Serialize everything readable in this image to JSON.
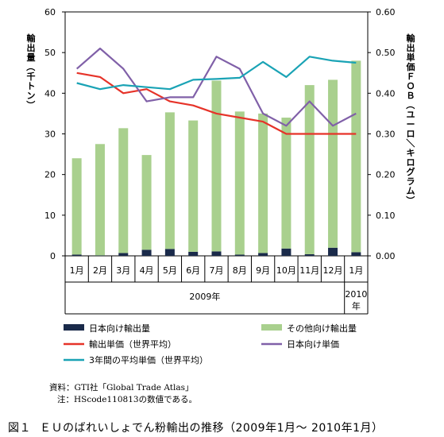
{
  "chart_data": {
    "type": "bar+line",
    "categories": [
      "1月",
      "2月",
      "3月",
      "4月",
      "5月",
      "6月",
      "7月",
      "8月",
      "9月",
      "10月",
      "11月",
      "12月",
      "1月"
    ],
    "year_labels": [
      {
        "text": "2009年",
        "span": [
          0,
          11
        ]
      },
      {
        "text": "2010年",
        "span": [
          12,
          12
        ]
      }
    ],
    "left_axis": {
      "label": "輸出量（千トン）",
      "ylim": [
        0,
        60
      ],
      "ticks": [
        "0",
        "10",
        "20",
        "30",
        "40",
        "50",
        "60"
      ]
    },
    "right_axis": {
      "label": "輸出単価ＦＯＢ（ユーロ／キログラム）",
      "ylim": [
        0,
        0.6
      ],
      "ticks": [
        "0.00",
        "0.10",
        "0.20",
        "0.30",
        "0.40",
        "0.50",
        "0.60"
      ]
    },
    "stacked_bars": [
      {
        "name": "日本向け輸出量",
        "color": "#1a2a4a",
        "axis": "left",
        "values": [
          0.3,
          0.1,
          0.7,
          1.5,
          1.7,
          1.0,
          1.1,
          0.3,
          0.7,
          1.8,
          0.4,
          2.0,
          0.9
        ]
      },
      {
        "name": "その他向け輸出量",
        "color": "#a9d08e",
        "axis": "left",
        "values": [
          23.7,
          27.4,
          30.7,
          23.3,
          33.6,
          32.3,
          42.0,
          35.2,
          34.3,
          32.2,
          41.6,
          41.3,
          47.1
        ]
      }
    ],
    "lines": [
      {
        "name": "輸出単価（世界平均）",
        "color": "#e63329",
        "axis": "right",
        "values": [
          0.45,
          0.44,
          0.4,
          0.41,
          0.38,
          0.37,
          0.35,
          0.34,
          0.33,
          0.3,
          0.3,
          0.3,
          0.3
        ]
      },
      {
        "name": "日本向け単価",
        "color": "#8060a8",
        "axis": "right",
        "values": [
          0.46,
          0.51,
          0.46,
          0.38,
          0.39,
          0.39,
          0.49,
          0.46,
          0.35,
          0.32,
          0.38,
          0.32,
          0.35
        ]
      },
      {
        "name": "3年間の平均単価（世界平均）",
        "color": "#1aa3b5",
        "axis": "right",
        "values": [
          0.425,
          0.41,
          0.42,
          0.415,
          0.41,
          0.433,
          0.435,
          0.438,
          0.477,
          0.44,
          0.49,
          0.48,
          0.475
        ]
      }
    ],
    "legend": {
      "placement": "bottom",
      "order": [
        "日本向け輸出量",
        "その他向け輸出量",
        "輸出単価（世界平均）",
        "日本向け単価",
        "3年間の平均単価（世界平均）"
      ]
    },
    "grid": false
  },
  "source_note": {
    "line1": "資料：GTI社「Global Trade Atlas」",
    "line2": "注：HScode110813の数値である。"
  },
  "caption": {
    "label": "図１",
    "text": "ＥＵのばれいしょでん粉輸出の推移（2009年1月～ 2010年1月）"
  }
}
